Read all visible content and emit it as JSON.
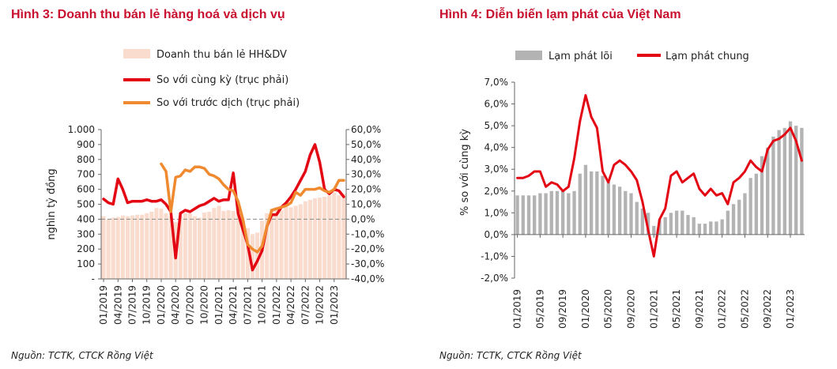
{
  "chart_data": [
    {
      "type": "bar+line",
      "title": "Hình 3: Doanh thu bán lẻ hàng hoá và dịch vụ",
      "source": "Nguồn: TCTK, CTCK Rồng Việt",
      "ylabel": "nghìn tỷ đồng",
      "ylim": [
        0,
        1000
      ],
      "y_ticks": [
        "-",
        "100",
        "200",
        "300",
        "400",
        "500",
        "600",
        "700",
        "800",
        "900",
        "1.000"
      ],
      "y2lim": [
        -40,
        60
      ],
      "y2_ticks": [
        "-40,0%",
        "-30,0%",
        "-20,0%",
        "-10,0%",
        "0,0%",
        "10,0%",
        "20,0%",
        "30,0%",
        "40,0%",
        "50,0%",
        "60,0%"
      ],
      "categories": [
        "01/2019",
        "02/2019",
        "03/2019",
        "04/2019",
        "05/2019",
        "06/2019",
        "07/2019",
        "08/2019",
        "09/2019",
        "10/2019",
        "11/2019",
        "12/2019",
        "01/2020",
        "02/2020",
        "03/2020",
        "04/2020",
        "05/2020",
        "06/2020",
        "07/2020",
        "08/2020",
        "09/2020",
        "10/2020",
        "11/2020",
        "12/2020",
        "01/2021",
        "02/2021",
        "03/2021",
        "04/2021",
        "05/2021",
        "06/2021",
        "07/2021",
        "08/2021",
        "09/2021",
        "10/2021",
        "11/2021",
        "12/2021",
        "01/2022",
        "02/2022",
        "03/2022",
        "04/2022",
        "05/2022",
        "06/2022",
        "07/2022",
        "08/2022",
        "09/2022",
        "10/2022",
        "11/2022",
        "12/2022",
        "01/2023",
        "02/2023",
        "03/2023"
      ],
      "x_tick_labels": [
        "01/2019",
        "04/2019",
        "07/2019",
        "10/2019",
        "01/2020",
        "04/2020",
        "07/2020",
        "10/2020",
        "01/2021",
        "04/2021",
        "07/2021",
        "10/2021",
        "01/2022",
        "04/2022",
        "07/2022",
        "10/2022",
        "01/2023"
      ],
      "series": [
        {
          "name": "Doanh thu bán lẻ HH&DV",
          "kind": "bar",
          "axis": "left",
          "color": "#f9dccd",
          "values": [
            420,
            400,
            410,
            415,
            425,
            420,
            425,
            430,
            430,
            440,
            450,
            475,
            470,
            440,
            420,
            380,
            420,
            440,
            440,
            420,
            410,
            445,
            450,
            475,
            490,
            455,
            460,
            455,
            440,
            390,
            340,
            300,
            310,
            390,
            440,
            470,
            480,
            460,
            480,
            480,
            490,
            500,
            520,
            530,
            540,
            545,
            550,
            560,
            580,
            560,
            570
          ]
        },
        {
          "name": "So với cùng kỳ (trục phải)",
          "kind": "line",
          "axis": "right",
          "color": "#e30613",
          "values": [
            13.5,
            11,
            10,
            27,
            20,
            11,
            12,
            12,
            12,
            13,
            12,
            12,
            13,
            10,
            5,
            -26,
            4,
            6,
            5,
            7,
            9,
            10,
            12,
            14,
            12,
            13,
            13,
            31,
            4,
            -7,
            -17,
            -34,
            -28,
            -21,
            -5,
            3,
            3,
            8,
            11,
            15,
            20,
            26,
            32,
            43,
            50,
            38,
            20,
            17,
            20,
            19,
            15
          ]
        },
        {
          "name": "So với trước dịch (trục phải)",
          "kind": "line",
          "axis": "right",
          "color": "#f08a30",
          "values": [
            null,
            null,
            null,
            null,
            null,
            null,
            null,
            null,
            null,
            null,
            null,
            null,
            37,
            32,
            5,
            28,
            29,
            33,
            32,
            35,
            35,
            34,
            30,
            29,
            27,
            23,
            20,
            19,
            12,
            0,
            -17,
            -20,
            -22,
            -18,
            -5,
            6,
            7,
            8,
            9,
            11,
            18,
            16,
            20,
            20,
            20,
            21,
            19,
            18,
            20,
            26,
            26
          ]
        }
      ]
    },
    {
      "type": "bar+line",
      "title": "Hình 4: Diễn biến lạm phát của Việt Nam",
      "source": "Nguồn: TCTK, CTCK Rồng Việt",
      "ylabel": "% so với cùng kỳ",
      "ylim": [
        -2,
        7
      ],
      "y_ticks": [
        "-2,0%",
        "-1,0%",
        "0,0%",
        "1,0%",
        "2,0%",
        "3,0%",
        "4,0%",
        "5,0%",
        "6,0%",
        "7,0%"
      ],
      "categories": [
        "01/2019",
        "02/2019",
        "03/2019",
        "04/2019",
        "05/2019",
        "06/2019",
        "07/2019",
        "08/2019",
        "09/2019",
        "10/2019",
        "11/2019",
        "12/2019",
        "01/2020",
        "02/2020",
        "03/2020",
        "04/2020",
        "05/2020",
        "06/2020",
        "07/2020",
        "08/2020",
        "09/2020",
        "10/2020",
        "11/2020",
        "12/2020",
        "01/2021",
        "02/2021",
        "03/2021",
        "04/2021",
        "05/2021",
        "06/2021",
        "07/2021",
        "08/2021",
        "09/2021",
        "10/2021",
        "11/2021",
        "12/2021",
        "01/2022",
        "02/2022",
        "03/2022",
        "04/2022",
        "05/2022",
        "06/2022",
        "07/2022",
        "08/2022",
        "09/2022",
        "10/2022",
        "11/2022",
        "12/2022",
        "01/2023",
        "02/2023",
        "03/2023"
      ],
      "x_tick_labels": [
        "01/2019",
        "05/2019",
        "09/2019",
        "01/2020",
        "05/2020",
        "09/2020",
        "01/2021",
        "05/2021",
        "09/2021",
        "01/2022",
        "05/2022",
        "09/2022",
        "01/2023"
      ],
      "series": [
        {
          "name": "Lạm phát lõi",
          "kind": "bar",
          "color": "#b3b3b3",
          "values": [
            1.8,
            1.8,
            1.8,
            1.8,
            1.9,
            1.9,
            2.0,
            2.0,
            2.0,
            1.9,
            2.0,
            2.8,
            3.2,
            2.9,
            2.9,
            2.7,
            2.4,
            2.3,
            2.2,
            2.0,
            1.9,
            1.5,
            1.2,
            1.0,
            0.4,
            0.7,
            0.8,
            1.0,
            1.1,
            1.1,
            0.9,
            0.8,
            0.5,
            0.5,
            0.6,
            0.6,
            0.7,
            1.1,
            1.4,
            1.6,
            1.9,
            2.6,
            2.8,
            3.6,
            4.0,
            4.5,
            4.8,
            4.9,
            5.2,
            5.0,
            4.9
          ]
        },
        {
          "name": "Lạm phát chung",
          "kind": "line",
          "color": "#e30613",
          "values": [
            2.6,
            2.6,
            2.7,
            2.9,
            2.9,
            2.2,
            2.4,
            2.3,
            2.0,
            2.2,
            3.5,
            5.2,
            6.4,
            5.4,
            4.9,
            2.9,
            2.4,
            3.2,
            3.4,
            3.2,
            2.9,
            2.5,
            1.5,
            0.2,
            -1.0,
            0.7,
            1.2,
            2.7,
            2.9,
            2.4,
            2.6,
            2.8,
            2.1,
            1.8,
            2.1,
            1.8,
            1.9,
            1.4,
            2.4,
            2.6,
            2.9,
            3.4,
            3.1,
            2.9,
            3.9,
            4.3,
            4.4,
            4.6,
            4.9,
            4.3,
            3.4
          ]
        }
      ]
    }
  ]
}
